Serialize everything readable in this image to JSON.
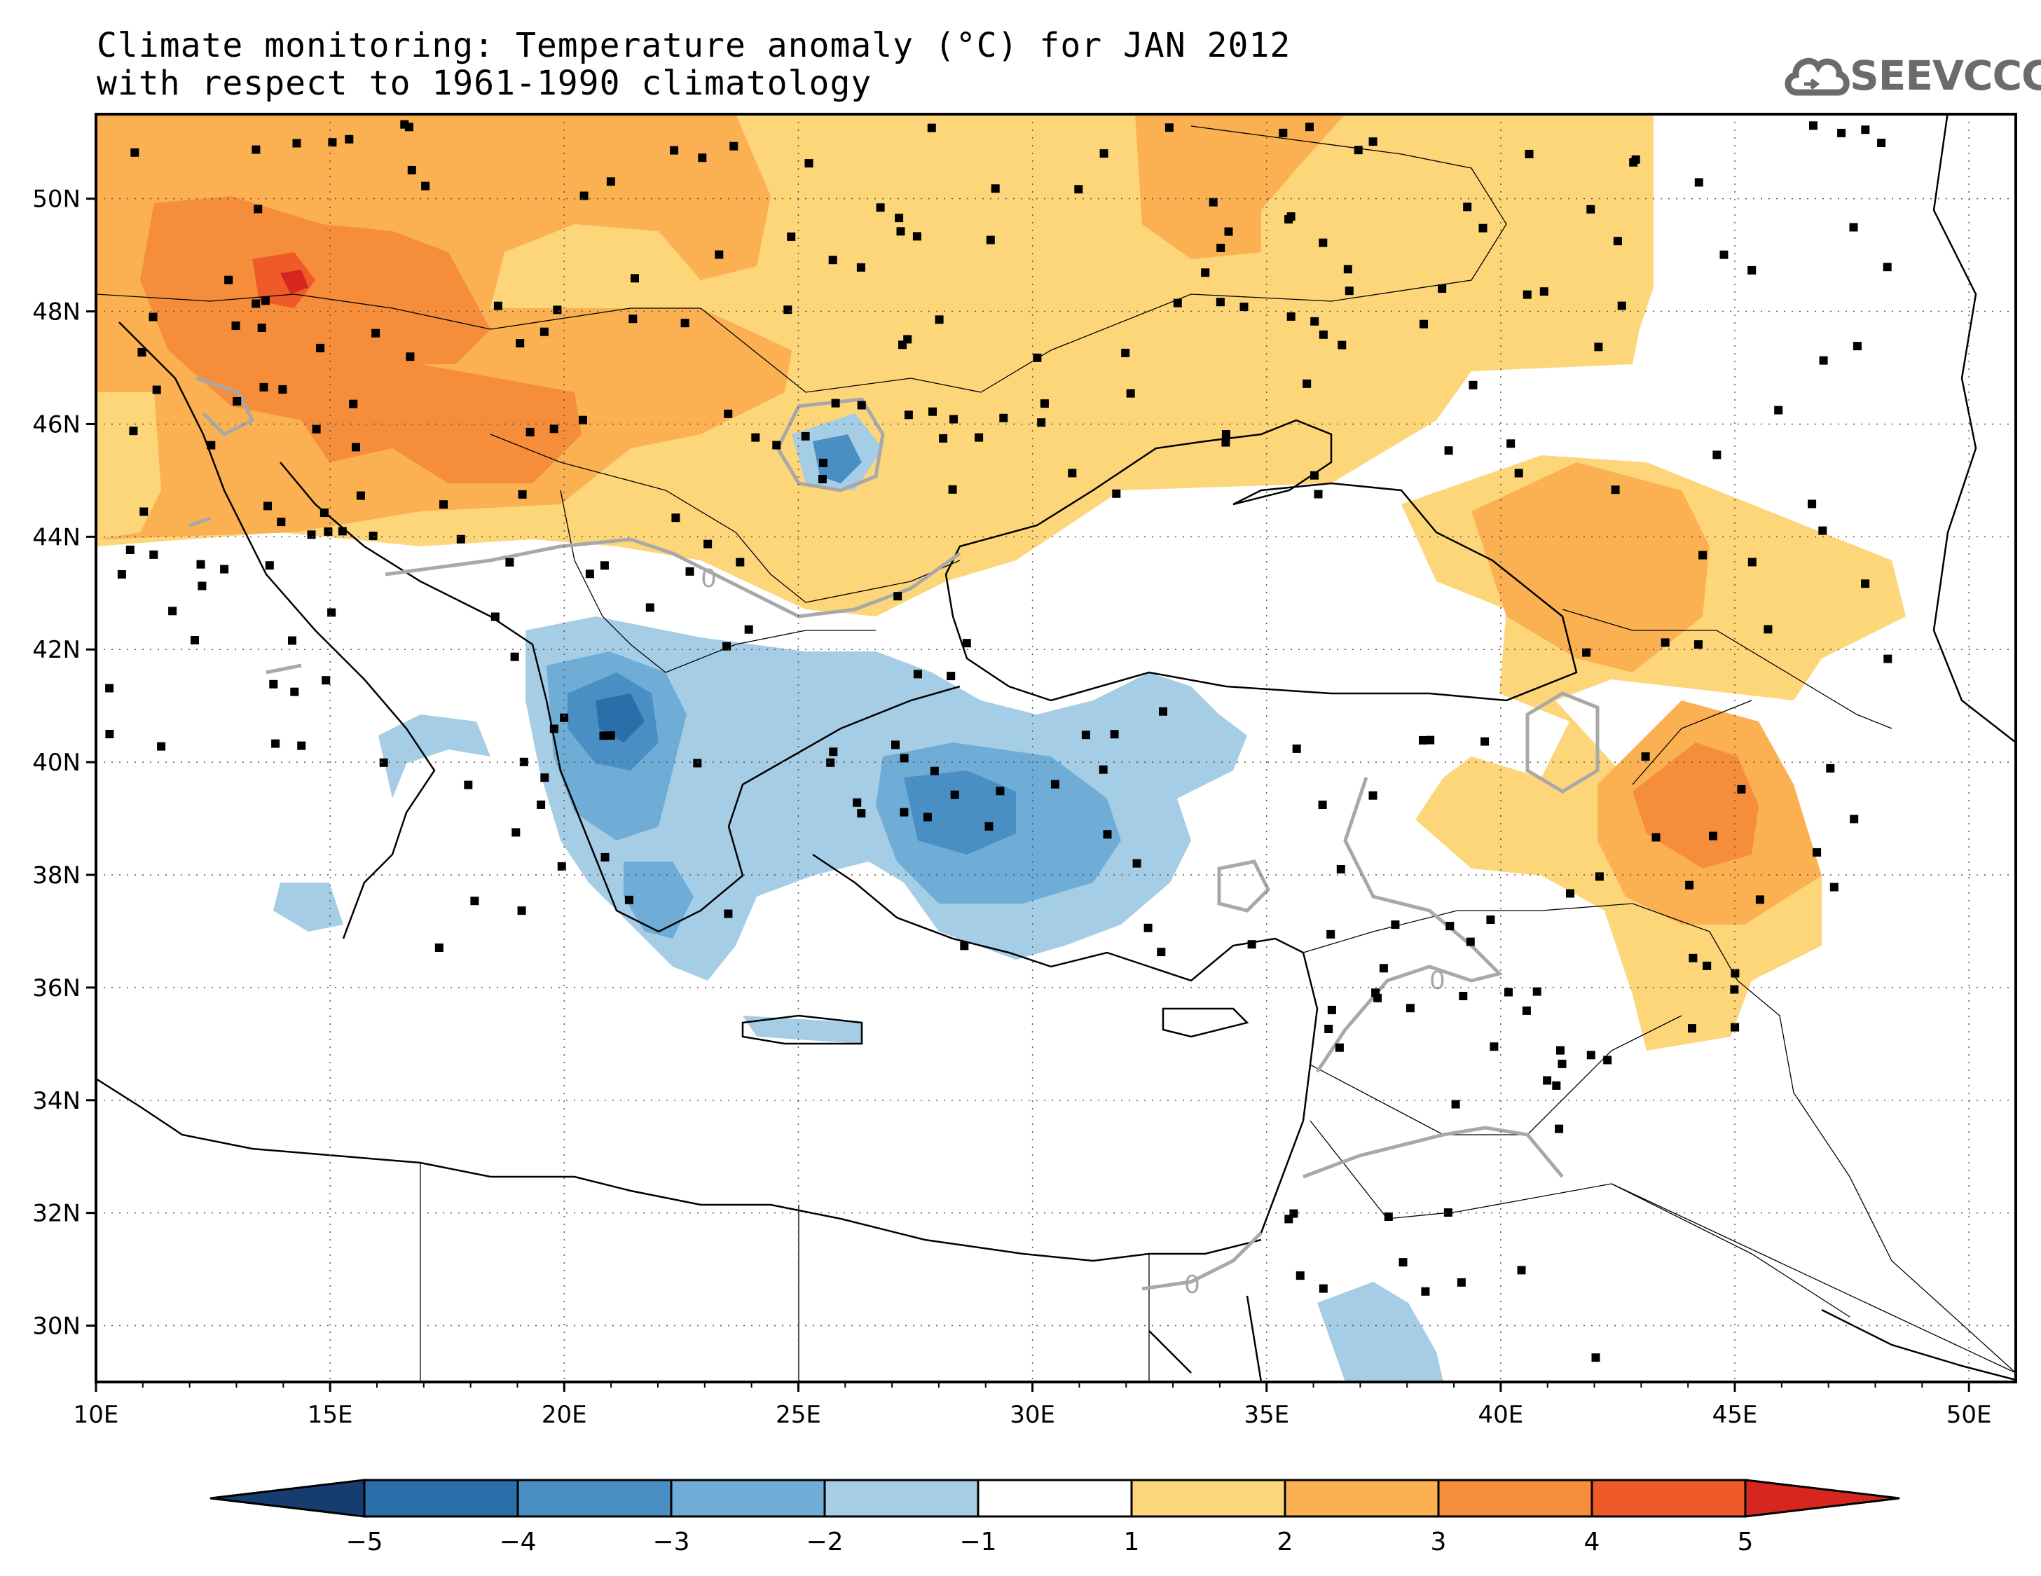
{
  "title_line1": "Climate monitoring: Temperature anomaly (°C) for JAN 2012",
  "title_line2": "with respect to 1961-1990 climatology",
  "logo_text": "SEEVCCC",
  "map": {
    "lon_range": [
      10,
      51
    ],
    "lat_range": [
      29,
      51.5
    ],
    "lon_ticks": [
      "10E",
      "15E",
      "20E",
      "25E",
      "30E",
      "35E",
      "40E",
      "45E",
      "50E"
    ],
    "lat_ticks": [
      "30N",
      "32N",
      "34N",
      "36N",
      "38N",
      "40N",
      "42N",
      "44N",
      "46N",
      "48N",
      "50N"
    ],
    "contour_label": "0",
    "colors": {
      "m5": "#173c6f",
      "m4": "#2b6faa",
      "m3": "#4a8fc4",
      "m2": "#6fadd6",
      "m1": "#a6cde6",
      "zero": "#ffffff",
      "p1": "#fdd67a",
      "p2": "#fbb052",
      "p3": "#f58d3b",
      "p4": "#ee5a2a",
      "p5": "#d7261e"
    }
  },
  "colorbar": {
    "ticks": [
      "-5",
      "-4",
      "-3",
      "-2",
      "-1",
      "1",
      "2",
      "3",
      "4",
      "5"
    ],
    "bins": [
      "#2b6faa",
      "#4a8fc4",
      "#6fadd6",
      "#a6cde6",
      "#ffffff",
      "#fdd67a",
      "#fbb052",
      "#f58d3b",
      "#ee5a2a"
    ],
    "low_extend": "#173c6f",
    "high_extend": "#d7261e"
  }
}
